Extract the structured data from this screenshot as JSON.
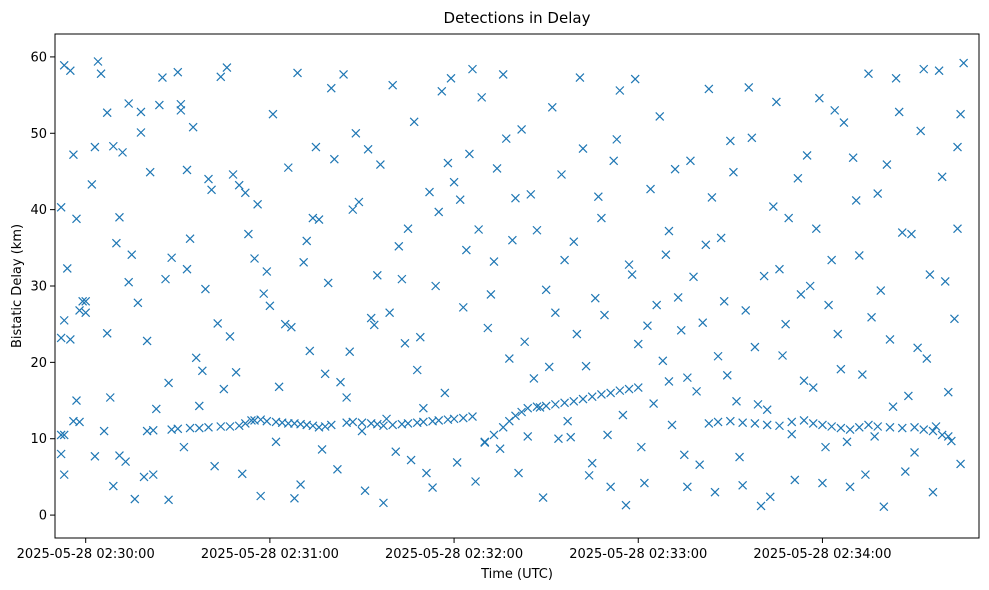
{
  "chart_data": {
    "type": "scatter",
    "title": "Detections in Delay",
    "xlabel": "Time (UTC)",
    "ylabel": "Bistatic Delay (km)",
    "marker": "x",
    "color": "#1f77b4",
    "grid": false,
    "x_unit": "seconds since 2025-05-28 02:30:00",
    "xlim": [
      -10,
      291
    ],
    "ylim": [
      -3,
      63
    ],
    "x_ticks": [
      {
        "value": 0,
        "label": "2025-05-28 02:30:00"
      },
      {
        "value": 60,
        "label": "2025-05-28 02:31:00"
      },
      {
        "value": 120,
        "label": "2025-05-28 02:32:00"
      },
      {
        "value": 180,
        "label": "2025-05-28 02:33:00"
      },
      {
        "value": 240,
        "label": "2025-05-28 02:34:00"
      }
    ],
    "y_ticks": [
      0,
      10,
      20,
      30,
      40,
      50,
      60
    ],
    "track_points": [
      [
        -8,
        10.5
      ],
      [
        -7,
        10.5
      ],
      [
        -4,
        12.3
      ],
      [
        -2,
        12.2
      ],
      [
        20,
        11.0
      ],
      [
        22,
        11.1
      ],
      [
        28,
        11.2
      ],
      [
        30,
        11.3
      ],
      [
        34,
        11.4
      ],
      [
        37,
        11.4
      ],
      [
        40,
        11.5
      ],
      [
        44,
        11.6
      ],
      [
        47,
        11.6
      ],
      [
        50,
        11.7
      ],
      [
        52,
        12.0
      ],
      [
        55,
        12.4
      ],
      [
        57,
        12.5
      ],
      [
        59,
        12.3
      ],
      [
        62,
        12.2
      ],
      [
        64,
        12.1
      ],
      [
        66,
        12.0
      ],
      [
        68,
        12.0
      ],
      [
        70,
        11.9
      ],
      [
        72,
        11.8
      ],
      [
        74,
        11.7
      ],
      [
        76,
        11.5
      ],
      [
        78,
        11.6
      ],
      [
        80,
        11.8
      ],
      [
        85,
        12.1
      ],
      [
        87,
        12.2
      ],
      [
        90,
        12.1
      ],
      [
        93,
        12.0
      ],
      [
        95,
        11.9
      ],
      [
        97,
        11.7
      ],
      [
        100,
        11.8
      ],
      [
        103,
        11.9
      ],
      [
        105,
        12.0
      ],
      [
        108,
        12.1
      ],
      [
        110,
        12.2
      ],
      [
        113,
        12.3
      ],
      [
        115,
        12.4
      ],
      [
        118,
        12.5
      ],
      [
        120,
        12.6
      ],
      [
        123,
        12.7
      ],
      [
        126,
        12.9
      ],
      [
        130,
        9.6
      ],
      [
        133,
        10.5
      ],
      [
        136,
        11.5
      ],
      [
        138,
        12.3
      ],
      [
        140,
        13.0
      ],
      [
        142,
        13.5
      ],
      [
        144,
        14.0
      ],
      [
        147,
        14.2
      ],
      [
        150,
        14.3
      ],
      [
        153,
        14.5
      ],
      [
        156,
        14.7
      ],
      [
        159,
        14.9
      ],
      [
        162,
        15.2
      ],
      [
        165,
        15.5
      ],
      [
        168,
        15.8
      ],
      [
        171,
        16.0
      ],
      [
        174,
        16.3
      ],
      [
        177,
        16.5
      ],
      [
        180,
        16.7
      ],
      [
        190,
        17.5
      ],
      [
        196,
        18.0
      ],
      [
        203,
        12.0
      ],
      [
        206,
        12.2
      ],
      [
        210,
        12.3
      ],
      [
        214,
        12.1
      ],
      [
        218,
        12.0
      ],
      [
        222,
        11.8
      ],
      [
        226,
        11.7
      ],
      [
        230,
        12.2
      ],
      [
        234,
        12.4
      ],
      [
        237,
        12.0
      ],
      [
        240,
        11.8
      ],
      [
        243,
        11.6
      ],
      [
        246,
        11.4
      ],
      [
        249,
        11.2
      ],
      [
        252,
        11.5
      ],
      [
        255,
        11.8
      ],
      [
        258,
        11.6
      ],
      [
        262,
        11.5
      ],
      [
        266,
        11.4
      ],
      [
        270,
        11.5
      ],
      [
        273,
        11.2
      ],
      [
        276,
        11.0
      ],
      [
        279,
        10.5
      ],
      [
        281,
        10.3
      ]
    ],
    "clutter_points": [
      [
        -8,
        23.2
      ],
      [
        -7,
        25.5
      ],
      [
        -5,
        23.0
      ],
      [
        -3,
        15.0
      ],
      [
        -1,
        28.0
      ],
      [
        6,
        11.0
      ],
      [
        7,
        23.8
      ],
      [
        3,
        48.2
      ],
      [
        12,
        47.5
      ],
      [
        14,
        53.9
      ],
      [
        18,
        52.8
      ],
      [
        24,
        53.7
      ],
      [
        31,
        53.8
      ],
      [
        33,
        32.2
      ],
      [
        41,
        42.6
      ],
      [
        16,
        2.1
      ],
      [
        19,
        5.0
      ],
      [
        22,
        5.3
      ],
      [
        9,
        3.8
      ],
      [
        11,
        7.8
      ],
      [
        3,
        7.7
      ],
      [
        27,
        2.0
      ],
      [
        -8,
        8.0
      ],
      [
        -7,
        5.3
      ],
      [
        -6,
        32.3
      ],
      [
        -4,
        47.2
      ],
      [
        -8,
        40.3
      ],
      [
        -7,
        58.9
      ],
      [
        -5,
        58.2
      ],
      [
        -3,
        38.8
      ],
      [
        0,
        26.5
      ],
      [
        0,
        28.0
      ],
      [
        4,
        59.4
      ],
      [
        5,
        57.8
      ],
      [
        7,
        52.7
      ],
      [
        9,
        48.3
      ],
      [
        11,
        39.0
      ],
      [
        14,
        30.5
      ],
      [
        15,
        34.1
      ],
      [
        17,
        27.8
      ],
      [
        18,
        50.1
      ],
      [
        20,
        22.8
      ],
      [
        25,
        57.3
      ],
      [
        26,
        30.9
      ],
      [
        27,
        17.3
      ],
      [
        30,
        58.0
      ],
      [
        31,
        53.0
      ],
      [
        33,
        45.2
      ],
      [
        34,
        36.2
      ],
      [
        36,
        20.6
      ],
      [
        38,
        18.9
      ],
      [
        40,
        44.0
      ],
      [
        43,
        25.1
      ],
      [
        45,
        16.5
      ],
      [
        46,
        58.6
      ],
      [
        48,
        44.6
      ],
      [
        49,
        18.7
      ],
      [
        50,
        43.2
      ],
      [
        52,
        42.2
      ],
      [
        53,
        36.8
      ],
      [
        55,
        33.6
      ],
      [
        58,
        29.0
      ],
      [
        60,
        27.4
      ],
      [
        62,
        9.6
      ],
      [
        65,
        25.0
      ],
      [
        67,
        24.6
      ],
      [
        70,
        4.0
      ],
      [
        72,
        35.9
      ],
      [
        73,
        21.5
      ],
      [
        74,
        38.9
      ],
      [
        75,
        48.2
      ],
      [
        76,
        38.7
      ],
      [
        78,
        18.5
      ],
      [
        80,
        55.9
      ],
      [
        81,
        46.6
      ],
      [
        83,
        17.4
      ],
      [
        85,
        15.4
      ],
      [
        87,
        40.0
      ],
      [
        88,
        50.0
      ],
      [
        90,
        11.0
      ],
      [
        92,
        47.9
      ],
      [
        93,
        25.8
      ],
      [
        95,
        31.4
      ],
      [
        97,
        1.6
      ],
      [
        99,
        26.5
      ],
      [
        100,
        56.3
      ],
      [
        102,
        35.2
      ],
      [
        104,
        22.5
      ],
      [
        105,
        37.5
      ],
      [
        106,
        7.2
      ],
      [
        108,
        19.0
      ],
      [
        110,
        14.0
      ],
      [
        112,
        42.3
      ],
      [
        113,
        3.6
      ],
      [
        114,
        30.0
      ],
      [
        116,
        55.5
      ],
      [
        118,
        46.1
      ],
      [
        120,
        43.6
      ],
      [
        122,
        41.3
      ],
      [
        124,
        34.7
      ],
      [
        126,
        58.4
      ],
      [
        128,
        37.4
      ],
      [
        130,
        9.5
      ],
      [
        132,
        28.9
      ],
      [
        134,
        45.4
      ],
      [
        136,
        57.7
      ],
      [
        138,
        20.5
      ],
      [
        140,
        41.5
      ],
      [
        142,
        50.5
      ],
      [
        144,
        10.3
      ],
      [
        146,
        17.9
      ],
      [
        148,
        14.1
      ],
      [
        150,
        29.5
      ],
      [
        152,
        53.4
      ],
      [
        154,
        10.0
      ],
      [
        156,
        33.4
      ],
      [
        158,
        10.2
      ],
      [
        160,
        23.7
      ],
      [
        162,
        48.0
      ],
      [
        164,
        5.2
      ],
      [
        166,
        28.4
      ],
      [
        168,
        38.9
      ],
      [
        170,
        10.5
      ],
      [
        172,
        46.4
      ],
      [
        174,
        55.6
      ],
      [
        176,
        1.3
      ],
      [
        178,
        31.5
      ],
      [
        180,
        22.4
      ],
      [
        182,
        4.2
      ],
      [
        184,
        42.7
      ],
      [
        186,
        27.5
      ],
      [
        188,
        20.2
      ],
      [
        190,
        37.2
      ],
      [
        192,
        45.3
      ],
      [
        194,
        24.2
      ],
      [
        196,
        3.7
      ],
      [
        198,
        31.2
      ],
      [
        200,
        6.6
      ],
      [
        202,
        35.4
      ],
      [
        204,
        41.6
      ],
      [
        206,
        20.8
      ],
      [
        208,
        28.0
      ],
      [
        210,
        49.0
      ],
      [
        212,
        14.9
      ],
      [
        214,
        3.9
      ],
      [
        216,
        56.0
      ],
      [
        218,
        22.0
      ],
      [
        220,
        1.2
      ],
      [
        222,
        13.8
      ],
      [
        224,
        40.4
      ],
      [
        226,
        32.2
      ],
      [
        228,
        25.0
      ],
      [
        230,
        10.6
      ],
      [
        232,
        44.1
      ],
      [
        234,
        17.6
      ],
      [
        236,
        30.0
      ],
      [
        238,
        37.5
      ],
      [
        240,
        4.2
      ],
      [
        242,
        27.5
      ],
      [
        244,
        53.0
      ],
      [
        246,
        19.1
      ],
      [
        248,
        9.6
      ],
      [
        250,
        46.8
      ],
      [
        252,
        34.0
      ],
      [
        254,
        5.3
      ],
      [
        256,
        25.9
      ],
      [
        258,
        42.1
      ],
      [
        260,
        1.1
      ],
      [
        262,
        23.0
      ],
      [
        264,
        57.2
      ],
      [
        266,
        37.0
      ],
      [
        268,
        15.6
      ],
      [
        270,
        8.2
      ],
      [
        272,
        50.3
      ],
      [
        274,
        20.5
      ],
      [
        276,
        3.0
      ],
      [
        278,
        58.2
      ],
      [
        280,
        30.6
      ],
      [
        282,
        9.7
      ],
      [
        284,
        48.2
      ],
      [
        -2,
        26.8
      ],
      [
        2,
        43.3
      ],
      [
        8,
        15.4
      ],
      [
        10,
        35.6
      ],
      [
        13,
        7.0
      ],
      [
        21,
        44.9
      ],
      [
        23,
        13.9
      ],
      [
        28,
        33.7
      ],
      [
        32,
        8.9
      ],
      [
        35,
        50.8
      ],
      [
        37,
        14.3
      ],
      [
        39,
        29.6
      ],
      [
        42,
        6.4
      ],
      [
        44,
        57.4
      ],
      [
        47,
        23.4
      ],
      [
        51,
        5.4
      ],
      [
        54,
        12.4
      ],
      [
        56,
        40.7
      ],
      [
        57,
        2.5
      ],
      [
        59,
        31.9
      ],
      [
        61,
        52.5
      ],
      [
        63,
        16.8
      ],
      [
        66,
        45.5
      ],
      [
        68,
        2.2
      ],
      [
        69,
        57.9
      ],
      [
        71,
        33.1
      ],
      [
        77,
        8.6
      ],
      [
        79,
        30.4
      ],
      [
        82,
        6.0
      ],
      [
        84,
        57.7
      ],
      [
        86,
        21.4
      ],
      [
        89,
        41.0
      ],
      [
        91,
        3.2
      ],
      [
        94,
        24.9
      ],
      [
        96,
        45.9
      ],
      [
        98,
        12.6
      ],
      [
        101,
        8.3
      ],
      [
        103,
        30.9
      ],
      [
        107,
        51.5
      ],
      [
        109,
        23.3
      ],
      [
        111,
        5.5
      ],
      [
        115,
        39.7
      ],
      [
        117,
        16.0
      ],
      [
        119,
        57.2
      ],
      [
        121,
        6.9
      ],
      [
        123,
        27.2
      ],
      [
        125,
        47.3
      ],
      [
        127,
        4.4
      ],
      [
        129,
        54.7
      ],
      [
        131,
        24.5
      ],
      [
        133,
        33.2
      ],
      [
        135,
        8.7
      ],
      [
        137,
        49.3
      ],
      [
        139,
        36.0
      ],
      [
        141,
        5.5
      ],
      [
        143,
        22.7
      ],
      [
        145,
        42.0
      ],
      [
        147,
        37.3
      ],
      [
        149,
        2.3
      ],
      [
        151,
        19.4
      ],
      [
        153,
        26.5
      ],
      [
        155,
        44.6
      ],
      [
        157,
        12.3
      ],
      [
        159,
        35.8
      ],
      [
        161,
        57.3
      ],
      [
        163,
        19.5
      ],
      [
        165,
        6.8
      ],
      [
        167,
        41.7
      ],
      [
        169,
        26.2
      ],
      [
        171,
        3.7
      ],
      [
        173,
        49.2
      ],
      [
        175,
        13.1
      ],
      [
        177,
        32.8
      ],
      [
        179,
        57.1
      ],
      [
        181,
        8.9
      ],
      [
        183,
        24.8
      ],
      [
        185,
        14.6
      ],
      [
        187,
        52.2
      ],
      [
        189,
        34.1
      ],
      [
        191,
        11.8
      ],
      [
        193,
        28.5
      ],
      [
        195,
        7.9
      ],
      [
        197,
        46.4
      ],
      [
        199,
        16.2
      ],
      [
        201,
        25.2
      ],
      [
        203,
        55.8
      ],
      [
        205,
        3.0
      ],
      [
        207,
        36.3
      ],
      [
        209,
        18.3
      ],
      [
        211,
        44.9
      ],
      [
        213,
        7.6
      ],
      [
        215,
        26.8
      ],
      [
        217,
        49.4
      ],
      [
        219,
        14.5
      ],
      [
        221,
        31.3
      ],
      [
        223,
        2.4
      ],
      [
        225,
        54.1
      ],
      [
        227,
        20.9
      ],
      [
        229,
        38.9
      ],
      [
        231,
        4.6
      ],
      [
        233,
        28.9
      ],
      [
        235,
        47.1
      ],
      [
        237,
        16.7
      ],
      [
        239,
        54.6
      ],
      [
        241,
        8.9
      ],
      [
        243,
        33.4
      ],
      [
        245,
        23.7
      ],
      [
        247,
        51.4
      ],
      [
        249,
        3.7
      ],
      [
        251,
        41.2
      ],
      [
        253,
        18.4
      ],
      [
        255,
        57.8
      ],
      [
        257,
        10.3
      ],
      [
        259,
        29.4
      ],
      [
        261,
        45.9
      ],
      [
        263,
        14.2
      ],
      [
        265,
        52.8
      ],
      [
        267,
        5.7
      ],
      [
        269,
        36.8
      ],
      [
        271,
        21.9
      ],
      [
        273,
        58.4
      ],
      [
        275,
        31.5
      ],
      [
        277,
        11.6
      ],
      [
        279,
        44.3
      ],
      [
        281,
        16.1
      ],
      [
        283,
        25.7
      ],
      [
        285,
        52.5
      ],
      [
        286,
        59.2
      ],
      [
        285,
        6.7
      ],
      [
        284,
        37.5
      ]
    ]
  }
}
